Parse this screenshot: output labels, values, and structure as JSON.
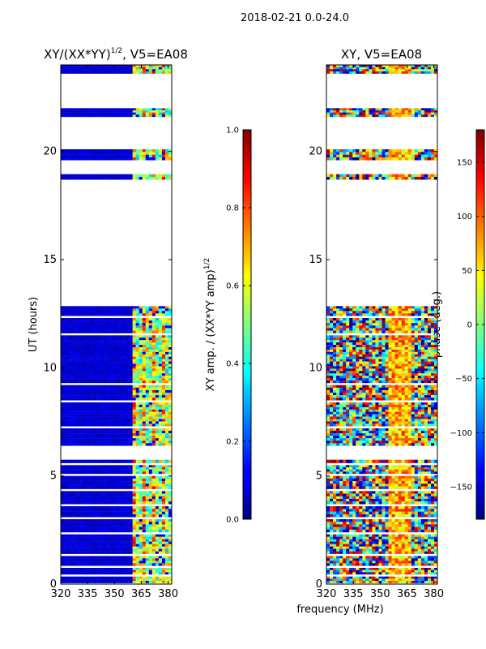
{
  "suptitle": "2018-02-21 0.0-24.0",
  "chart_data": [
    {
      "type": "heatmap",
      "title": "XY/(XX*YY)^{1/2}, V5=EA08",
      "title_main": "XY/(XX*YY)",
      "title_sup": "1/2",
      "title_tail": ", V5=EA08",
      "xlabel": "frequency (MHz)",
      "ylabel": "UT (hours)",
      "xlim": [
        320,
        382
      ],
      "ylim": [
        0,
        24
      ],
      "xticks": [
        320,
        335,
        350,
        365,
        380
      ],
      "yticks": [
        0,
        5,
        10,
        15,
        20
      ],
      "colormap": "jet",
      "colorbar": {
        "label": "XY amp. / (XX*YY amp)^{1/2}",
        "label_main": "XY amp. / (XX*YY amp)",
        "label_sup": "1/2",
        "vmin": 0.0,
        "vmax": 1.0,
        "ticks": [
          "0.0",
          "0.2",
          "0.4",
          "0.6",
          "0.8",
          "1.0"
        ]
      }
    },
    {
      "type": "heatmap",
      "title": "XY, V5=EA08",
      "xlabel": "frequency (MHz)",
      "ylabel": "",
      "xlim": [
        320,
        382
      ],
      "ylim": [
        0,
        24
      ],
      "xticks": [
        320,
        335,
        350,
        365,
        380
      ],
      "yticks": [
        0,
        5,
        10,
        15,
        20
      ],
      "colormap": "jet",
      "colorbar": {
        "label": "phase (deg.)",
        "vmin": -180,
        "vmax": 180,
        "ticks": [
          "−150",
          "−100",
          "−50",
          "0",
          "50",
          "100",
          "150"
        ]
      }
    }
  ],
  "data_bands_hours": [
    [
      0.05,
      0.35
    ],
    [
      0.45,
      0.75
    ],
    [
      0.85,
      1.3
    ],
    [
      1.4,
      2.3
    ],
    [
      2.4,
      3.0
    ],
    [
      3.1,
      3.6
    ],
    [
      3.7,
      4.3
    ],
    [
      4.4,
      5.0
    ],
    [
      5.1,
      5.5
    ],
    [
      5.6,
      5.75
    ],
    [
      6.4,
      7.2
    ],
    [
      7.3,
      8.4
    ],
    [
      8.5,
      9.2
    ],
    [
      9.3,
      11.5
    ],
    [
      11.6,
      12.3
    ],
    [
      12.4,
      12.85
    ],
    [
      18.7,
      18.95
    ],
    [
      19.6,
      20.1
    ],
    [
      21.6,
      22.0
    ],
    [
      23.6,
      24.0
    ]
  ]
}
